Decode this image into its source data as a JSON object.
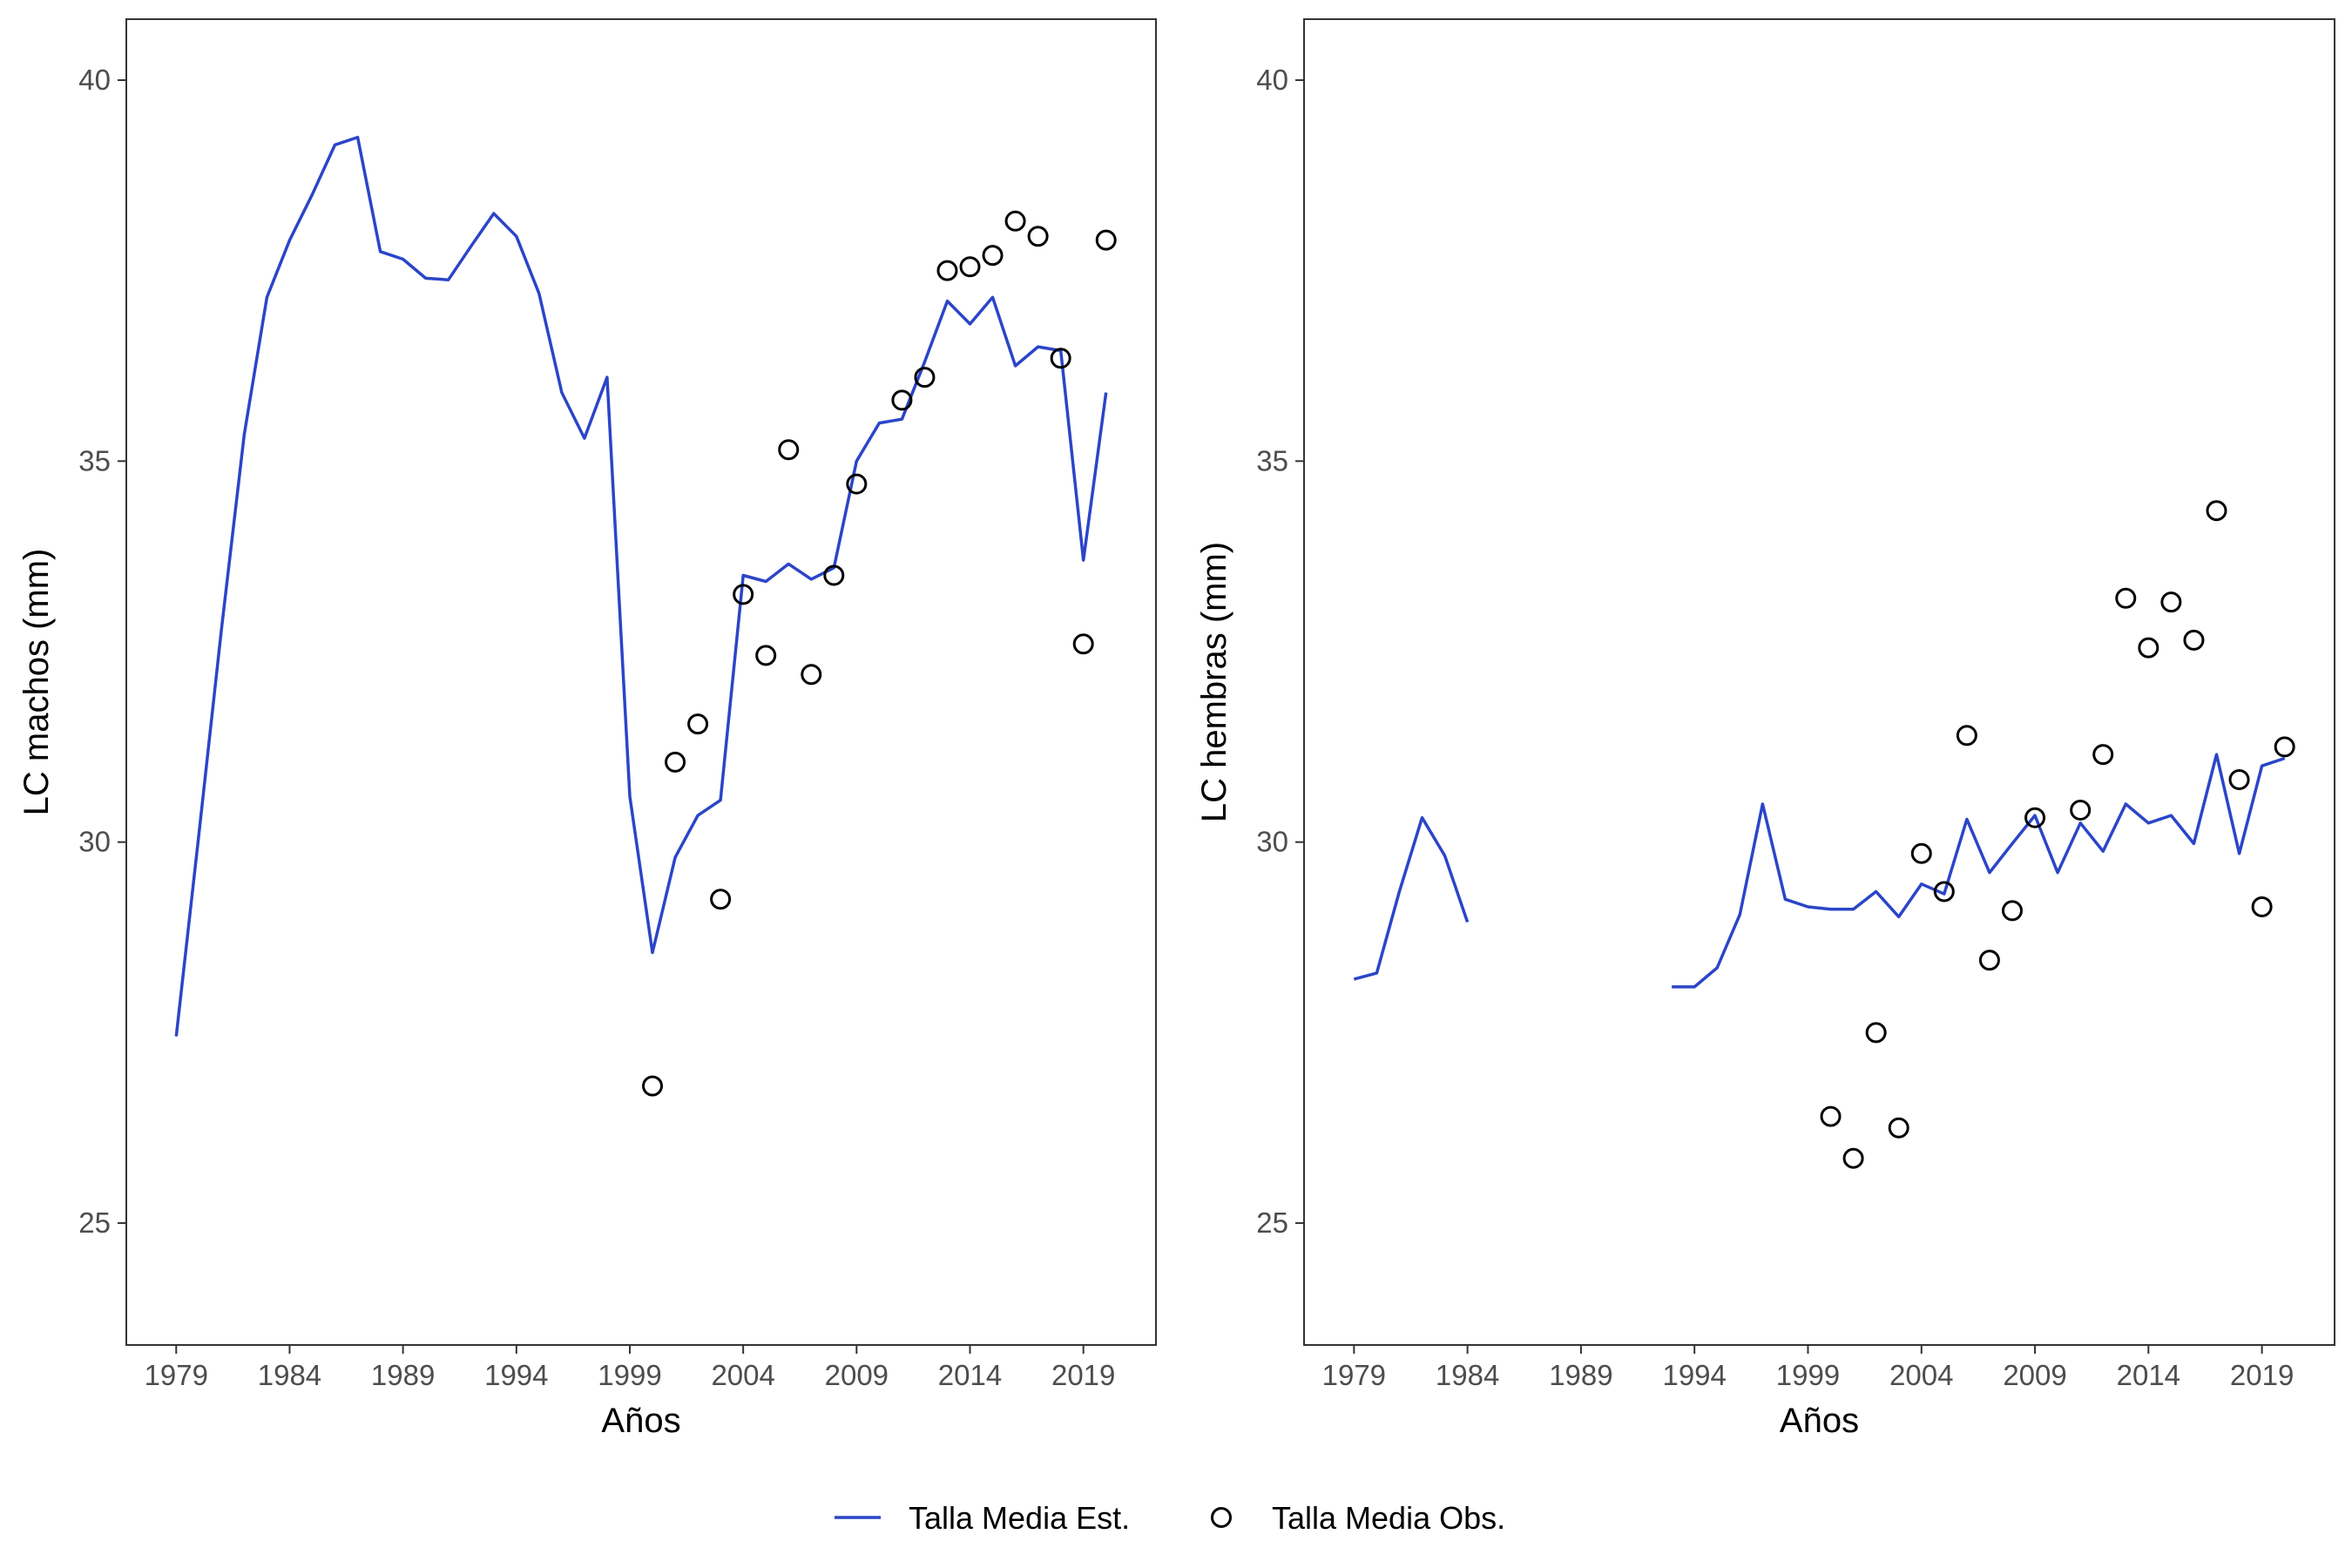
{
  "legend": {
    "position": "bottom",
    "line_label": "Talla Media Est.",
    "points_label": "Talla Media Obs."
  },
  "colors": {
    "line": "#2b45c8",
    "points": "#000000",
    "panel_border": "#333333",
    "tick_text": "#4d4d4d"
  },
  "chart_data": [
    {
      "type": "line",
      "xlabel": "Años",
      "ylabel": "LC machos (mm)",
      "xlim": [
        1976.8,
        2022.2
      ],
      "ylim": [
        23.4,
        40.8
      ],
      "xticks": [
        1979,
        1984,
        1989,
        1994,
        1999,
        2004,
        2009,
        2014,
        2019
      ],
      "yticks": [
        25,
        30,
        35,
        40
      ],
      "grid": false,
      "series": [
        {
          "name": "Talla Media Est.",
          "kind": "line",
          "x": [
            1979,
            1980,
            1981,
            1982,
            1983,
            1984,
            1985,
            1986,
            1987,
            1988,
            1989,
            1990,
            1991,
            1992,
            1993,
            1994,
            1995,
            1996,
            1997,
            1998,
            1999,
            2000,
            2001,
            2002,
            2003,
            2004,
            2005,
            2006,
            2007,
            2008,
            2009,
            2010,
            2011,
            2012,
            2013,
            2014,
            2015,
            2016,
            2017,
            2018,
            2019,
            2020
          ],
          "y": [
            27.45,
            30.1,
            32.8,
            35.35,
            37.15,
            37.9,
            38.5,
            39.15,
            39.25,
            37.75,
            37.65,
            37.4,
            37.38,
            37.82,
            38.25,
            37.95,
            37.2,
            35.9,
            35.3,
            36.1,
            30.6,
            28.55,
            29.8,
            30.35,
            30.55,
            33.5,
            33.42,
            33.65,
            33.45,
            33.6,
            35.0,
            35.5,
            35.55,
            36.3,
            37.1,
            36.8,
            37.15,
            36.25,
            36.5,
            36.45,
            33.7,
            35.9
          ]
        },
        {
          "name": "Talla Media Obs.",
          "kind": "scatter",
          "x": [
            2000,
            2001,
            2002,
            2003,
            2004,
            2005,
            2006,
            2007,
            2008,
            2009,
            2011,
            2012,
            2013,
            2014,
            2015,
            2016,
            2017,
            2018,
            2019,
            2020
          ],
          "y": [
            26.8,
            31.05,
            31.55,
            29.25,
            33.25,
            32.45,
            35.15,
            32.2,
            33.5,
            34.7,
            35.8,
            36.1,
            37.5,
            37.55,
            37.7,
            38.15,
            37.95,
            36.35,
            32.6,
            37.9
          ]
        }
      ]
    },
    {
      "type": "line",
      "xlabel": "Años",
      "ylabel": "LC hembras (mm)",
      "xlim": [
        1976.8,
        2022.2
      ],
      "ylim": [
        23.4,
        40.8
      ],
      "xticks": [
        1979,
        1984,
        1989,
        1994,
        1999,
        2004,
        2009,
        2014,
        2019
      ],
      "yticks": [
        25,
        30,
        35,
        40
      ],
      "grid": false,
      "series": [
        {
          "name": "Talla Media Est.",
          "kind": "line",
          "segments": [
            {
              "x": [
                1979,
                1980,
                1981,
                1982,
                1983,
                1984
              ],
              "y": [
                28.2,
                28.28,
                29.35,
                30.32,
                29.82,
                28.95
              ]
            },
            {
              "x": [
                1993,
                1994,
                1995,
                1996,
                1997,
                1998,
                1999,
                2000,
                2001,
                2002,
                2003,
                2004,
                2005,
                2006,
                2007,
                2008,
                2009,
                2010,
                2011,
                2012,
                2013,
                2014,
                2015,
                2016,
                2017,
                2018,
                2019,
                2020
              ],
              "y": [
                28.1,
                28.1,
                28.35,
                29.05,
                30.5,
                29.25,
                29.15,
                29.12,
                29.12,
                29.35,
                29.02,
                29.45,
                29.32,
                30.3,
                29.6,
                29.98,
                30.35,
                29.6,
                30.25,
                29.88,
                30.5,
                30.25,
                30.35,
                29.98,
                31.15,
                29.85,
                31.0,
                31.1
              ]
            }
          ]
        },
        {
          "name": "Talla Media Obs.",
          "kind": "scatter",
          "x": [
            2000,
            2001,
            2002,
            2003,
            2004,
            2005,
            2006,
            2007,
            2008,
            2009,
            2011,
            2012,
            2013,
            2014,
            2015,
            2016,
            2017,
            2018,
            2019,
            2020
          ],
          "y": [
            26.4,
            25.85,
            27.5,
            26.25,
            29.85,
            29.35,
            31.4,
            28.45,
            29.1,
            30.32,
            30.42,
            31.15,
            33.2,
            32.55,
            33.15,
            32.65,
            34.35,
            30.82,
            29.15,
            31.25
          ]
        }
      ]
    }
  ]
}
